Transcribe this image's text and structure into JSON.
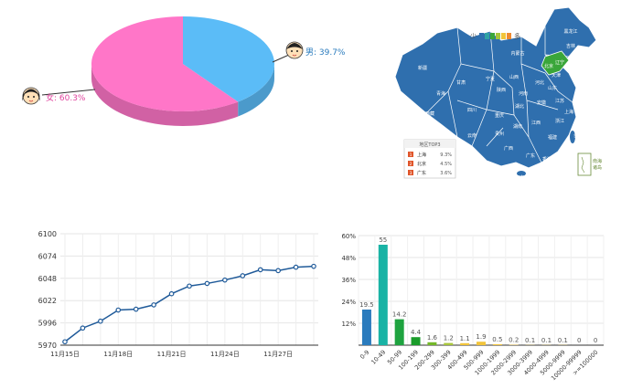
{
  "colors": {
    "pie_male": "#5bbcf7",
    "pie_female": "#ff76c8",
    "map_fill": "#2f6fae",
    "map_highlight": "#3aa63a",
    "line": "#1f5a99",
    "bar_palette": [
      "#2a7bbd",
      "#19b3a5",
      "#1ea33f",
      "#1a9c2a",
      "#74b829",
      "#a8c63b",
      "#f2c43a",
      "#d6d6d6"
    ]
  },
  "chart_data": [
    {
      "type": "pie",
      "slices": [
        {
          "name": "男",
          "value": 39.7,
          "label": "男: 39.7%",
          "icon": "boy-face-icon"
        },
        {
          "name": "女",
          "value": 60.3,
          "label": "女: 60.3%",
          "icon": "girl-face-icon"
        }
      ]
    },
    {
      "type": "map",
      "legend": {
        "low": "少",
        "high": "多",
        "scale_colors": [
          "#2f6fae",
          "#2fa3a3",
          "#3aa63a",
          "#a8c63b",
          "#f2c43a",
          "#f08a2f"
        ]
      },
      "region_labels": [
        "黑龙江",
        "吉林",
        "辽宁",
        "内蒙古",
        "北京",
        "天津",
        "河北",
        "山东",
        "江苏",
        "上海",
        "浙江",
        "福建",
        "台湾",
        "广东",
        "香港",
        "海南",
        "广西",
        "贵州",
        "云南",
        "四川",
        "重庆",
        "湖南",
        "湖北",
        "江西",
        "安徽",
        "河南",
        "山西",
        "陕西",
        "宁夏",
        "甘肃",
        "青海",
        "西藏",
        "新疆"
      ],
      "ranking": {
        "title": "地区TOP3",
        "rows": [
          {
            "rank": "1",
            "region": "上海",
            "value": "9.3%"
          },
          {
            "rank": "2",
            "region": "北京",
            "value": "4.5%"
          },
          {
            "rank": "3",
            "region": "广东",
            "value": "3.6%"
          }
        ]
      },
      "inset_label": "南海诸岛"
    },
    {
      "type": "line",
      "x": [
        "11月15日",
        "11月16日",
        "11月17日",
        "11月18日",
        "11月19日",
        "11月20日",
        "11月21日",
        "11月22日",
        "11月23日",
        "11月24日",
        "11月25日",
        "11月26日",
        "11月27日",
        "11月28日",
        "11月29日"
      ],
      "x_tick_labels": [
        "11月15日",
        "11月18日",
        "11月21日",
        "11月24日",
        "11月27日"
      ],
      "values": [
        5974,
        5990,
        5998,
        6011,
        6012,
        6017,
        6030,
        6039,
        6042,
        6046,
        6051,
        6058,
        6057,
        6061,
        6062
      ],
      "ylim": [
        5970,
        6100
      ],
      "y_ticks": [
        5970,
        5996,
        6022,
        6048,
        6074,
        6100
      ],
      "grid": true
    },
    {
      "type": "bar",
      "categories": [
        "0-9",
        "10-49",
        "50-99",
        "100-199",
        "200-299",
        "300-399",
        "400-499",
        "500-999",
        "1000-1999",
        "2000-2999",
        "3000-3999",
        "4000-4999",
        "5000-9999",
        "10000-99999",
        ">=100000"
      ],
      "values": [
        19.5,
        55,
        14.2,
        4.4,
        1.6,
        1.2,
        1.1,
        1.9,
        0.5,
        0.2,
        0.1,
        0.1,
        0.1,
        0,
        0
      ],
      "data_labels": [
        "19.5",
        "55",
        "14.2",
        "4.4",
        "1.6",
        "1.2",
        "1.1",
        "1.9",
        "0.5",
        "0.2",
        "0.1",
        "0.1",
        "0.1",
        "0",
        "0"
      ],
      "ylim": [
        0,
        60
      ],
      "y_ticks": [
        0,
        12,
        24,
        36,
        48,
        60
      ],
      "y_tick_labels": [
        "",
        "12%",
        "24%",
        "36%",
        "48%",
        "60%"
      ],
      "grid": true
    }
  ]
}
